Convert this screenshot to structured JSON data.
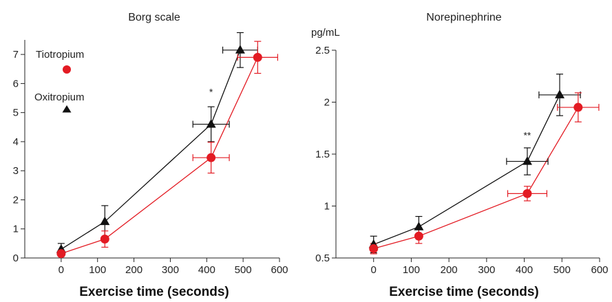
{
  "chart_data": [
    {
      "type": "line",
      "title": "Borg scale",
      "xlabel": "Exercise time (seconds)",
      "ylabel": "",
      "xlim": [
        -100,
        600
      ],
      "ylim": [
        0,
        7.5
      ],
      "xticks": [
        0,
        100,
        200,
        300,
        400,
        500,
        600
      ],
      "yticks": [
        0,
        1,
        2,
        3,
        4,
        5,
        6,
        7
      ],
      "xtick_labels": [
        "0",
        "100",
        "200",
        "300",
        "400",
        "500",
        "600"
      ],
      "ytick_labels": [
        "0",
        "1",
        "2",
        "3",
        "4",
        "5",
        "6",
        "7"
      ],
      "legend_position": "top-left",
      "annotations": [
        {
          "text": "*",
          "x": 412,
          "y": 5.6
        }
      ],
      "series": [
        {
          "name": "Oxitropium",
          "color": "#111111",
          "marker": "triangle",
          "x": [
            0,
            120,
            412,
            492
          ],
          "y": [
            0.3,
            1.25,
            4.6,
            7.15
          ],
          "xerr": [
            0,
            0,
            50,
            48
          ],
          "yerr": [
            0.2,
            0.55,
            0.6,
            0.6
          ]
        },
        {
          "name": "Tiotropium",
          "color": "#e31b23",
          "marker": "circle",
          "x": [
            0,
            120,
            412,
            540
          ],
          "y": [
            0.15,
            0.65,
            3.45,
            6.9
          ],
          "xerr": [
            0,
            0,
            50,
            55
          ],
          "yerr": [
            0.1,
            0.28,
            0.53,
            0.55
          ]
        }
      ]
    },
    {
      "type": "line",
      "title": "Norepinephrine",
      "unit_label": "pg/mL",
      "xlabel": "Exercise time (seconds)",
      "ylabel": "",
      "xlim": [
        -100,
        600
      ],
      "ylim": [
        0.5,
        2.5
      ],
      "xticks": [
        0,
        100,
        200,
        300,
        400,
        500,
        600
      ],
      "yticks": [
        0.5,
        1,
        1.5,
        2,
        2.5
      ],
      "xtick_labels": [
        "0",
        "100",
        "200",
        "300",
        "400",
        "500",
        "600"
      ],
      "ytick_labels": [
        "0.5",
        "1",
        "1.5",
        "2",
        "2.5"
      ],
      "annotations": [
        {
          "text": "**",
          "x": 408,
          "y": 1.65
        }
      ],
      "series": [
        {
          "name": "Oxitropium",
          "color": "#111111",
          "marker": "triangle",
          "x": [
            0,
            120,
            408,
            494
          ],
          "y": [
            0.63,
            0.8,
            1.43,
            2.07
          ],
          "xerr": [
            0,
            0,
            55,
            55
          ],
          "yerr": [
            0.08,
            0.1,
            0.13,
            0.2
          ]
        },
        {
          "name": "Tiotropium",
          "color": "#e31b23",
          "marker": "circle",
          "x": [
            0,
            120,
            408,
            543
          ],
          "y": [
            0.59,
            0.71,
            1.12,
            1.95
          ],
          "xerr": [
            0,
            0,
            52,
            55
          ],
          "yerr": [
            0.05,
            0.07,
            0.07,
            0.14
          ]
        }
      ]
    }
  ]
}
